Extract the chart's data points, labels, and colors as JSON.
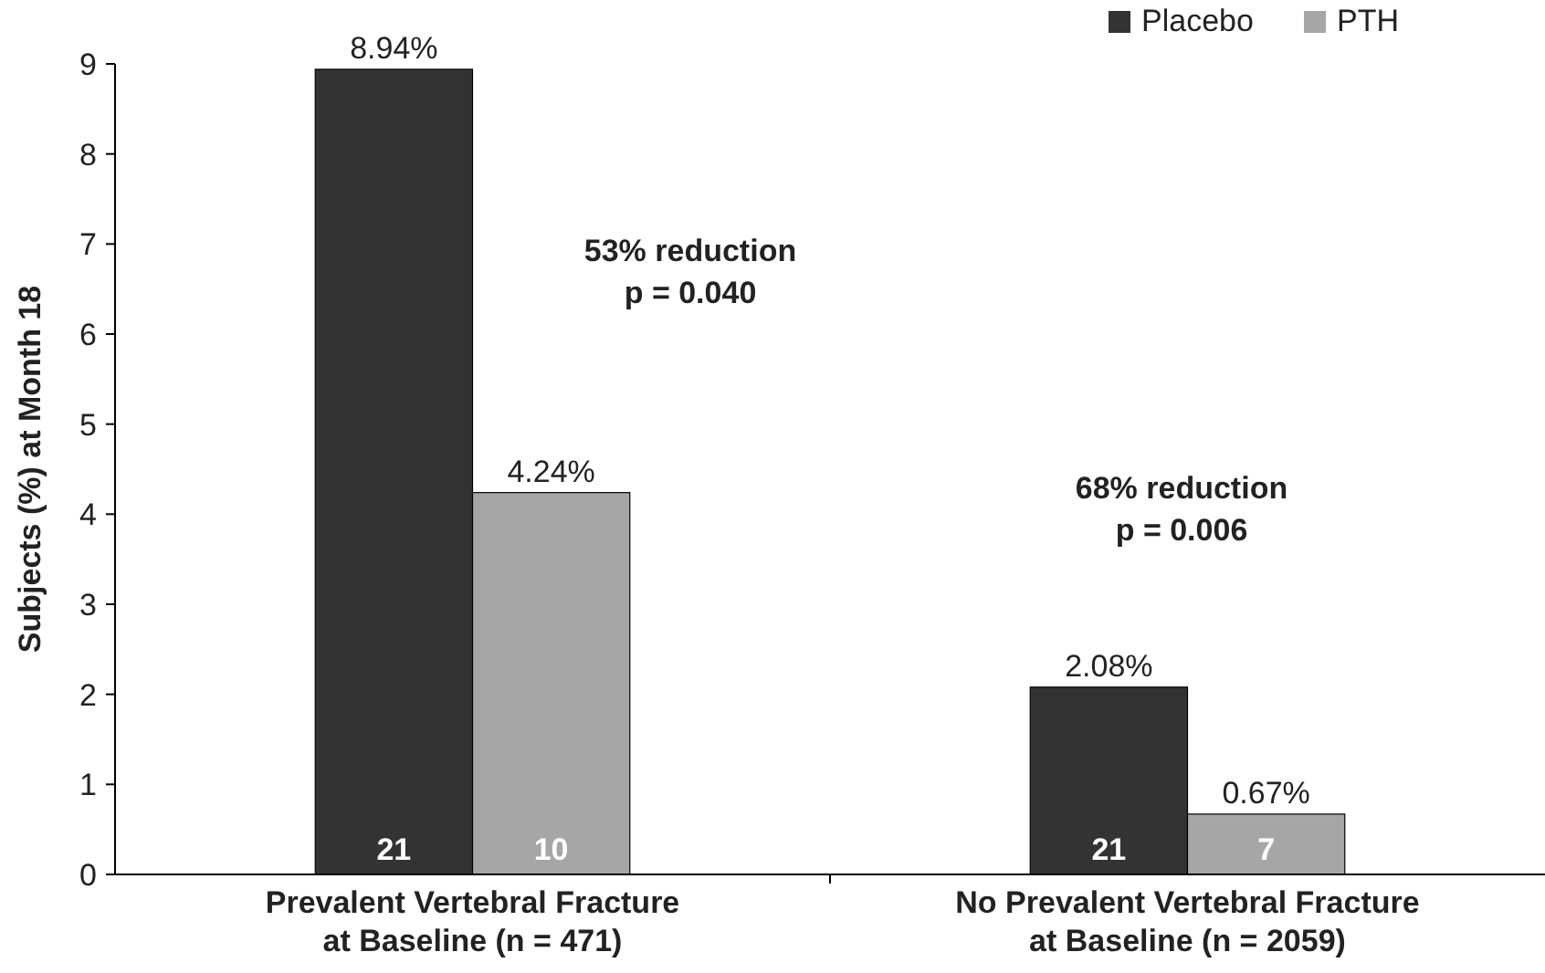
{
  "chart_data": {
    "type": "bar",
    "ylabel": "Subjects (%) at Month 18",
    "categories": [
      "Prevalent Vertebral Fracture\nat Baseline (n = 471)",
      "No Prevalent Vertebral Fracture\nat Baseline (n = 2059)"
    ],
    "series": [
      {
        "name": "Placebo",
        "color": "#333333",
        "values": [
          8.94,
          2.08
        ],
        "value_labels": [
          "8.94%",
          "2.08%"
        ]
      },
      {
        "name": "PTH",
        "color": "#a6a6a6",
        "values": [
          4.24,
          0.67
        ],
        "value_labels": [
          "4.24%",
          "0.67%"
        ]
      }
    ],
    "ylim": [
      0,
      9
    ],
    "yticks": [
      0,
      1,
      2,
      3,
      4,
      5,
      6,
      7,
      8,
      9
    ],
    "grid": false,
    "legend": "top right",
    "annotations": [
      "53% reduction\np = 0.040",
      "68% reduction\np = 0.006",
      {
        "text": "21",
        "x": "Prevalent Vertebral Fracture\nat Baseline (n = 471)",
        "y": 0
      },
      {
        "text": "10",
        "x": "Prevalent Vertebral Fracture\nat Baseline (n = 471)",
        "y": 0
      },
      {
        "text": "21",
        "x": "No Prevalent Vertebral Fracture\nat Baseline (n = 2059)",
        "y": 0
      },
      {
        "text": "7",
        "x": "No Prevalent Vertebral Fracture\nat Baseline (n = 2059)",
        "y": 0
      }
    ]
  }
}
